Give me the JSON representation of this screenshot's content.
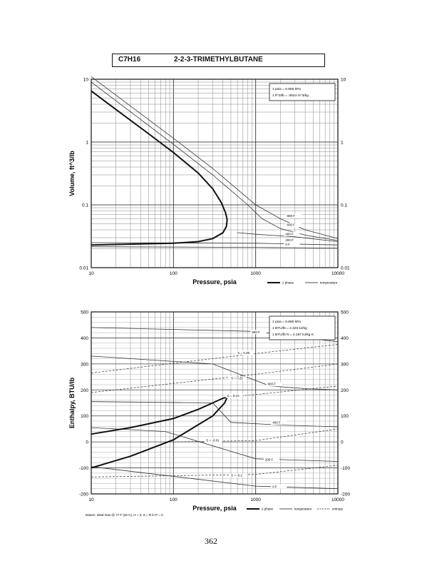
{
  "page": {
    "formula": "C7H16",
    "compound": "2-2-3-TRIMETHYLBUTANE",
    "page_number": "362"
  },
  "chart_data": [
    {
      "type": "line",
      "xscale": "log",
      "yscale": "log",
      "xlabel": "Pressure,  psia",
      "ylabel": "Volume,  ft^3/lb",
      "xlim": [
        10,
        10000
      ],
      "ylim": [
        0.01,
        10
      ],
      "xticks": [
        10,
        100,
        1000,
        10000
      ],
      "xtick_labels": [
        "10",
        "100",
        "1000",
        "10000"
      ],
      "yticks": [
        0.01,
        0.1,
        1,
        10
      ],
      "ytick_labels": [
        "0.01",
        "0.1",
        "1",
        "10"
      ],
      "grid": true,
      "notes": [
        "1 psia  =  6.895 kPa",
        "1 ft^3/lb  =  .0624 m^3/kg"
      ],
      "legend": [
        "2 phase",
        "temperature"
      ],
      "two_phase": [
        {
          "x": 10,
          "y": 6.5
        },
        {
          "x": 20,
          "y": 3.3
        },
        {
          "x": 50,
          "y": 1.35
        },
        {
          "x": 100,
          "y": 0.68
        },
        {
          "x": 200,
          "y": 0.32
        },
        {
          "x": 300,
          "y": 0.18
        },
        {
          "x": 380,
          "y": 0.11
        },
        {
          "x": 430,
          "y": 0.075
        },
        {
          "x": 450,
          "y": 0.058
        },
        {
          "x": 440,
          "y": 0.045
        },
        {
          "x": 400,
          "y": 0.036
        },
        {
          "x": 300,
          "y": 0.029
        },
        {
          "x": 200,
          "y": 0.026
        },
        {
          "x": 100,
          "y": 0.0245
        },
        {
          "x": 10,
          "y": 0.023
        }
      ],
      "isotherms": [
        {
          "label": "800 F",
          "points": [
            {
              "x": 10,
              "y": 11
            },
            {
              "x": 100,
              "y": 1.15
            },
            {
              "x": 300,
              "y": 0.38
            },
            {
              "x": 1000,
              "y": 0.1
            },
            {
              "x": 2000,
              "y": 0.06
            },
            {
              "x": 4000,
              "y": 0.04
            },
            {
              "x": 10000,
              "y": 0.029
            }
          ]
        },
        {
          "label": "600 F",
          "points": [
            {
              "x": 10,
              "y": 9
            },
            {
              "x": 100,
              "y": 0.92
            },
            {
              "x": 300,
              "y": 0.3
            },
            {
              "x": 800,
              "y": 0.1
            },
            {
              "x": 1200,
              "y": 0.06
            },
            {
              "x": 2000,
              "y": 0.042
            },
            {
              "x": 4000,
              "y": 0.033
            },
            {
              "x": 10000,
              "y": 0.027
            }
          ]
        },
        {
          "label": "400 F",
          "points": [
            {
              "x": 600,
              "y": 0.036
            },
            {
              "x": 1000,
              "y": 0.034
            },
            {
              "x": 3000,
              "y": 0.031
            },
            {
              "x": 10000,
              "y": 0.026
            }
          ]
        },
        {
          "label": "200 F",
          "points": [
            {
              "x": 10,
              "y": 0.025
            },
            {
              "x": 1000,
              "y": 0.0245
            },
            {
              "x": 10000,
              "y": 0.023
            }
          ]
        },
        {
          "label": "0 F",
          "points": [
            {
              "x": 10,
              "y": 0.0215
            },
            {
              "x": 1000,
              "y": 0.021
            },
            {
              "x": 10000,
              "y": 0.0205
            }
          ]
        }
      ]
    },
    {
      "type": "line",
      "xscale": "log",
      "yscale": "linear",
      "xlabel": "Pressure,  psia",
      "ylabel": "Enthalpy,  BTU/lb",
      "xlim": [
        10,
        10000
      ],
      "ylim": [
        -200,
        500
      ],
      "xticks": [
        10,
        100,
        1000,
        10000
      ],
      "xtick_labels": [
        "10",
        "100",
        "1000",
        "10000"
      ],
      "yticks": [
        -200,
        -100,
        0,
        100,
        200,
        300,
        400,
        500
      ],
      "ytick_labels": [
        "-200",
        "-100",
        "0",
        "100",
        "200",
        "300",
        "400",
        "500"
      ],
      "grid": true,
      "notes": [
        "1 psia  =  6.895 kPa",
        "1 BTU/lb  =  2.326 kJ/kg",
        "1 BTU/lb R  =  4.187 kJ/kg K"
      ],
      "footnote": "Datum: Ideal Gas @ 77 F (25 C), H = 0,  S = R ln P = 0",
      "legend": [
        "2 phase",
        "temperature",
        "entropy"
      ],
      "two_phase": [
        {
          "x": 10,
          "y": 30
        },
        {
          "x": 30,
          "y": 55
        },
        {
          "x": 100,
          "y": 90
        },
        {
          "x": 200,
          "y": 125
        },
        {
          "x": 300,
          "y": 150
        },
        {
          "x": 400,
          "y": 168
        },
        {
          "x": 450,
          "y": 172
        },
        {
          "x": 420,
          "y": 150
        },
        {
          "x": 300,
          "y": 100
        },
        {
          "x": 100,
          "y": 8
        },
        {
          "x": 30,
          "y": -55
        },
        {
          "x": 10,
          "y": -100
        }
      ],
      "isotherms": [
        {
          "label": "800 F",
          "points": [
            {
              "x": 10,
              "y": 440
            },
            {
              "x": 1000,
              "y": 425
            },
            {
              "x": 3000,
              "y": 405
            },
            {
              "x": 10000,
              "y": 385
            }
          ]
        },
        {
          "label": "600 F",
          "points": [
            {
              "x": 10,
              "y": 330
            },
            {
              "x": 300,
              "y": 300
            },
            {
              "x": 700,
              "y": 255
            },
            {
              "x": 1500,
              "y": 215
            },
            {
              "x": 4000,
              "y": 205
            },
            {
              "x": 10000,
              "y": 200
            }
          ]
        },
        {
          "label": "400 F",
          "points": [
            {
              "x": 10,
              "y": 155
            },
            {
              "x": 300,
              "y": 150
            },
            {
              "x": 500,
              "y": 75
            },
            {
              "x": 2000,
              "y": 65
            },
            {
              "x": 10000,
              "y": 58
            }
          ]
        },
        {
          "label": "200 F",
          "points": [
            {
              "x": 10,
              "y": 55
            },
            {
              "x": 80,
              "y": 40
            },
            {
              "x": 1000,
              "y": -65
            },
            {
              "x": 10000,
              "y": -75
            }
          ]
        },
        {
          "label": "0 F",
          "points": [
            {
              "x": 10,
              "y": -95
            },
            {
              "x": 1000,
              "y": -170
            },
            {
              "x": 10000,
              "y": -180
            }
          ]
        }
      ],
      "entropy_lines": [
        {
          "label": "S = 0.35",
          "points": [
            {
              "x": 10,
              "y": 265
            },
            {
              "x": 1000,
              "y": 340
            },
            {
              "x": 10000,
              "y": 375
            }
          ]
        },
        {
          "label": "S = 0.25",
          "points": [
            {
              "x": 10,
              "y": 190
            },
            {
              "x": 1000,
              "y": 260
            },
            {
              "x": 10000,
              "y": 300
            }
          ]
        },
        {
          "label": "S = 0.10",
          "points": [
            {
              "x": 450,
              "y": 172
            },
            {
              "x": 1000,
              "y": 182
            },
            {
              "x": 10000,
              "y": 215
            }
          ]
        },
        {
          "label": "S = -0.01",
          "points": [
            {
              "x": 100,
              "y": 0
            },
            {
              "x": 1000,
              "y": 5
            },
            {
              "x": 10000,
              "y": 50
            }
          ]
        },
        {
          "label": "S = -0.2",
          "points": [
            {
              "x": 10,
              "y": -135
            },
            {
              "x": 1000,
              "y": -125
            },
            {
              "x": 10000,
              "y": -90
            }
          ]
        }
      ]
    }
  ]
}
